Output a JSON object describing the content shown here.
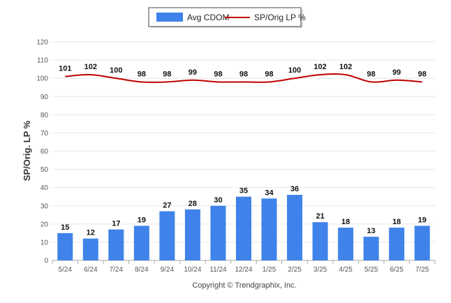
{
  "chart_data": {
    "type": "bar",
    "categories": [
      "5/24",
      "6/24",
      "7/24",
      "8/24",
      "9/24",
      "10/24",
      "11/24",
      "12/24",
      "1/25",
      "2/25",
      "3/25",
      "4/25",
      "5/25",
      "6/25",
      "7/25"
    ],
    "series": [
      {
        "name": "Avg CDOM",
        "type": "bar",
        "color": "#3f83ea",
        "values": [
          15,
          12,
          17,
          19,
          27,
          28,
          30,
          35,
          34,
          36,
          21,
          18,
          13,
          18,
          19
        ]
      },
      {
        "name": "SP/Orig LP %",
        "type": "line",
        "color": "#c00000",
        "values": [
          101,
          102,
          100,
          98,
          98,
          99,
          98,
          98,
          98,
          100,
          102,
          102,
          98,
          99,
          98
        ]
      }
    ],
    "ylabel": "SP/Orig. LP %",
    "ylim": [
      0,
      120
    ],
    "yticks": [
      "0",
      "10",
      "20",
      "30",
      "40",
      "50",
      "60",
      "70",
      "80",
      "90",
      "100",
      "110",
      "120"
    ],
    "grid": true,
    "legend_position": "top-center"
  },
  "footer": {
    "copyright": "Copyright © Trendgraphix, Inc."
  }
}
